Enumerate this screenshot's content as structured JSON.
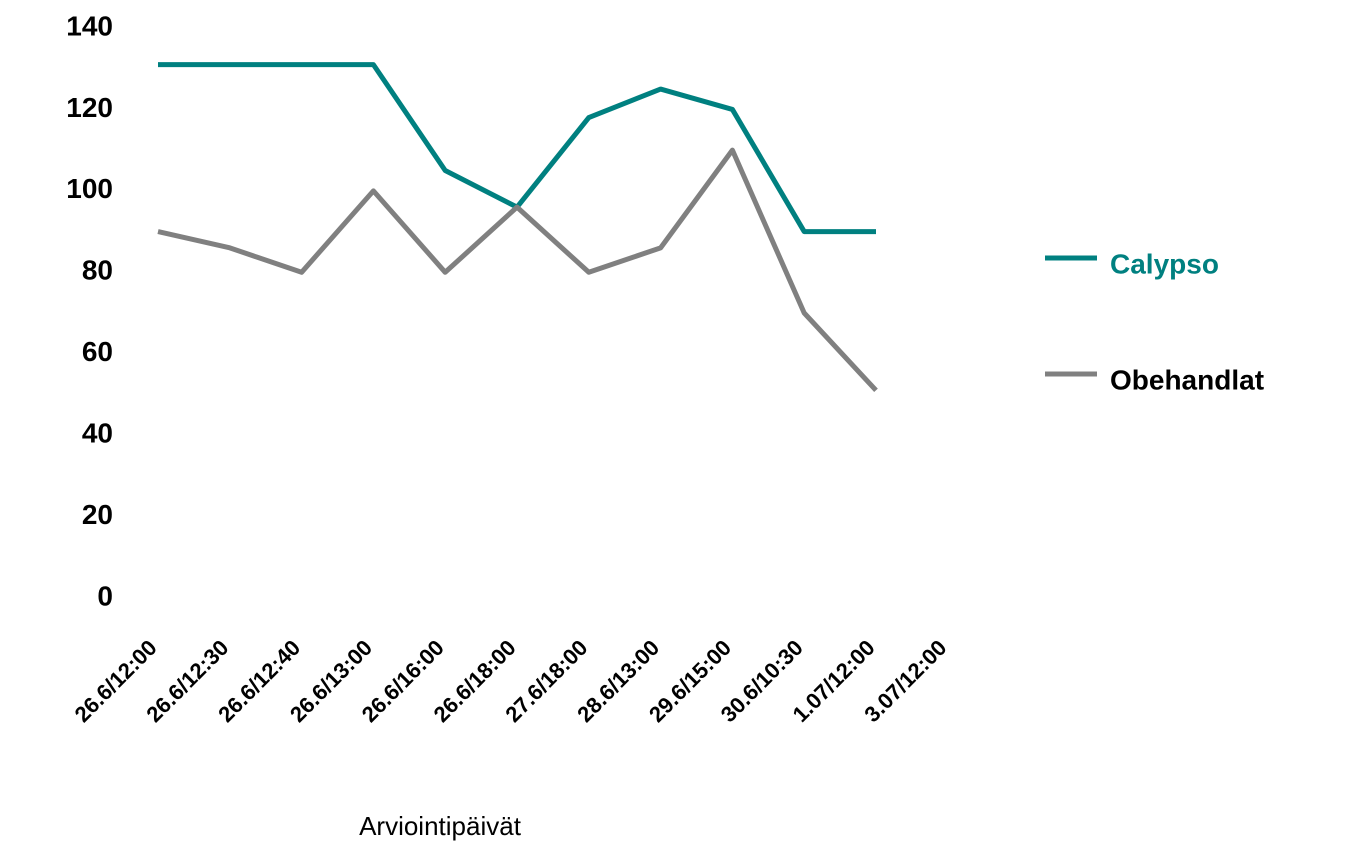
{
  "chart_data": {
    "type": "line",
    "x_label": "Arviointipäivät",
    "categories": [
      "26.6/12:00",
      "26.6/12:30",
      "26.6/12:40",
      "26.6/13:00",
      "26.6/16:00",
      "26.6/18:00",
      "27.6/18:00",
      "28.6/13:00",
      "29.6/15:00",
      "30.6/10:30",
      "1.07/12:00",
      "3.07/12:00"
    ],
    "series": [
      {
        "name": "Calypso",
        "color": "#008080",
        "values": [
          131,
          131,
          131,
          131,
          105,
          96,
          118,
          125,
          120,
          90,
          90,
          null
        ]
      },
      {
        "name": "Obehandlat",
        "color": "#808080",
        "values": [
          90,
          86,
          80,
          100,
          80,
          96,
          80,
          86,
          110,
          70,
          51,
          null
        ]
      }
    ],
    "ylim": [
      0,
      140
    ],
    "yticks": [
      0,
      20,
      40,
      60,
      80,
      100,
      120,
      140
    ],
    "grid": false,
    "legend": "right"
  }
}
